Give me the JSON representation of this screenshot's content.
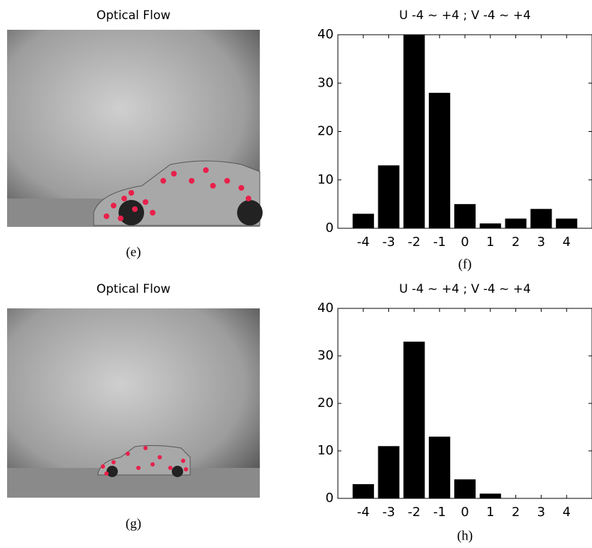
{
  "images": [
    {
      "title": "Optical Flow",
      "caption": "(e)"
    },
    {
      "title": "Optical Flow",
      "caption": "(g)"
    }
  ],
  "chart_data": [
    {
      "type": "bar",
      "title": "U -4 ~ +4 ; V -4 ~ +4",
      "caption": "(f)",
      "color": "#000000",
      "x": [
        -4,
        -3,
        -2,
        -1,
        0,
        1,
        2,
        3,
        4
      ],
      "values": [
        3,
        13,
        40,
        28,
        5,
        1,
        2,
        4,
        2
      ],
      "xlim": [
        -5,
        5
      ],
      "xticks": [
        -4,
        -3,
        -2,
        -1,
        0,
        1,
        2,
        3,
        4
      ],
      "ylim": [
        0,
        40
      ],
      "yticks": [
        0,
        10,
        20,
        30,
        40
      ]
    },
    {
      "type": "bar",
      "title": "U -4 ~ +4 ; V -4 ~ +4",
      "caption": "(h)",
      "color": "#000000",
      "x": [
        -4,
        -3,
        -2,
        -1,
        0,
        1,
        2,
        3,
        4
      ],
      "values": [
        3,
        11,
        33,
        13,
        4,
        1,
        0,
        0,
        0
      ],
      "xlim": [
        -5,
        5
      ],
      "xticks": [
        -4,
        -3,
        -2,
        -1,
        0,
        1,
        2,
        3,
        4
      ],
      "ylim": [
        0,
        40
      ],
      "yticks": [
        0,
        10,
        20,
        30,
        40
      ]
    }
  ]
}
